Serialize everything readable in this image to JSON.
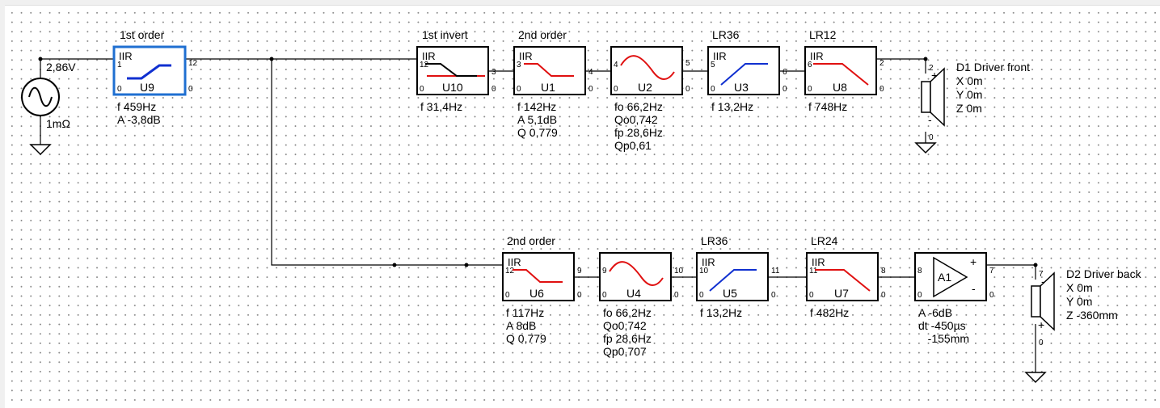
{
  "source": {
    "voltage": "2,86V",
    "resistance": "1mΩ"
  },
  "blocks": {
    "U9": {
      "name": "U9",
      "title": "1st order",
      "type": "IIR",
      "pin_in": "1",
      "pin_out": "12",
      "pin_gnd_l": "0",
      "pin_gnd_r": "0",
      "params": [
        "f   459Hz",
        "A  -3,8dB"
      ]
    },
    "U10": {
      "name": "U10",
      "title": "1st invert",
      "type": "IIR",
      "pin_in": "12",
      "pin_out": "3",
      "pin_gnd_l": "0",
      "pin_gnd_r": "0",
      "params": [
        "f   31,4Hz"
      ]
    },
    "U1": {
      "name": "U1",
      "title": "2nd order",
      "type": "IIR",
      "pin_in": "3",
      "pin_out": "4",
      "pin_gnd_l": "0",
      "pin_gnd_r": "0",
      "params": [
        "f   142Hz",
        "A  5,1dB",
        "Q  0,779"
      ]
    },
    "U2": {
      "name": "U2",
      "title": "",
      "type": "",
      "pin_in": "4",
      "pin_out": "5",
      "pin_gnd_l": "0",
      "pin_gnd_r": "0",
      "params": [
        "fo  66,2Hz",
        "Qo0,742",
        "fp  28,6Hz",
        "Qp0,61"
      ]
    },
    "U3": {
      "name": "U3",
      "title": "LR36",
      "type": "IIR",
      "pin_in": "5",
      "pin_out": "6",
      "pin_gnd_l": "0",
      "pin_gnd_r": "0",
      "params": [
        "f   13,2Hz"
      ]
    },
    "U8": {
      "name": "U8",
      "title": "LR12",
      "type": "IIR",
      "pin_in": "6",
      "pin_out": "2",
      "pin_gnd_l": "0",
      "pin_gnd_r": "0",
      "params": [
        "f   748Hz"
      ]
    },
    "U6": {
      "name": "U6",
      "title": "2nd order",
      "type": "IIR",
      "pin_in": "12",
      "pin_out": "9",
      "pin_gnd_l": "0",
      "pin_gnd_r": "0",
      "params": [
        "f   117Hz",
        "A  8dB",
        "Q  0,779"
      ]
    },
    "U4": {
      "name": "U4",
      "title": "",
      "type": "",
      "pin_in": "9",
      "pin_out": "10",
      "pin_gnd_l": "0",
      "pin_gnd_r": "0",
      "params": [
        "fo  66,2Hz",
        "Qo0,742",
        "fp  28,6Hz",
        "Qp0,707"
      ]
    },
    "U5": {
      "name": "U5",
      "title": "LR36",
      "type": "IIR",
      "pin_in": "10",
      "pin_out": "11",
      "pin_gnd_l": "0",
      "pin_gnd_r": "0",
      "params": [
        "f   13,2Hz"
      ]
    },
    "U7": {
      "name": "U7",
      "title": "LR24",
      "type": "IIR",
      "pin_in": "11",
      "pin_out": "8",
      "pin_gnd_l": "0",
      "pin_gnd_r": "0",
      "params": [
        "f   482Hz"
      ]
    }
  },
  "amp": {
    "name": "A1",
    "plus": "+",
    "minus": "-",
    "pin_in": "8",
    "pin_out": "7",
    "pin_gnd_l": "0",
    "pin_gnd_r": "0",
    "params": [
      "A  -6dB",
      "dt -450µs",
      "   -155mm"
    ]
  },
  "drivers": {
    "D1": {
      "title": "D1 Driver front",
      "pin_top": "2",
      "pin_bot": "0",
      "plus": "+",
      "minus": "-",
      "coords": [
        "X 0m",
        "Y 0m",
        "Z 0m"
      ]
    },
    "D2": {
      "title": "D2 Driver back",
      "pin_top": "7",
      "pin_bot": "0",
      "plus": "+",
      "minus": "-",
      "coords": [
        "X 0m",
        "Y 0m",
        "Z -360mm"
      ]
    }
  }
}
